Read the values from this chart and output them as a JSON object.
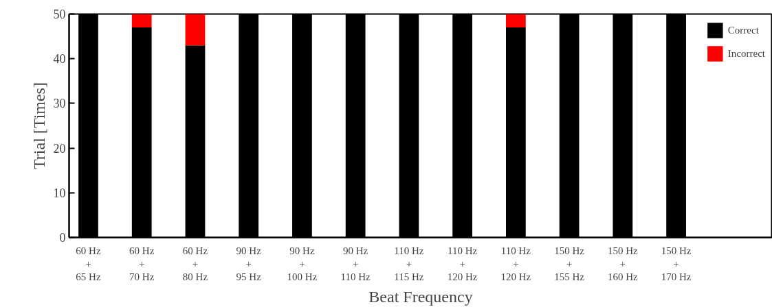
{
  "chart_data": {
    "type": "bar",
    "stacked": true,
    "categories": [
      "60 Hz\n+\n65 Hz",
      "60 Hz\n+\n70 Hz",
      "60 Hz\n+\n80 Hz",
      "90 Hz\n+\n95 Hz",
      "90 Hz\n+\n100 Hz",
      "90 Hz\n+\n110 Hz",
      "110 Hz\n+\n115 Hz",
      "110 Hz\n+\n120 Hz",
      "110 Hz\n+\n120 Hz",
      "150 Hz\n+\n155 Hz",
      "150 Hz\n+\n160 Hz",
      "150 Hz\n+\n170 Hz"
    ],
    "series": [
      {
        "name": "Correct",
        "color": "#000000",
        "values": [
          50,
          47,
          43,
          50,
          50,
          50,
          50,
          50,
          47,
          50,
          50,
          50
        ]
      },
      {
        "name": "Incorrect",
        "color": "#ff0000",
        "values": [
          0,
          3,
          7,
          0,
          0,
          0,
          0,
          0,
          3,
          0,
          0,
          0
        ]
      }
    ],
    "xlabel": "Beat Frequency",
    "ylabel": "Trial [Times]",
    "ylim": [
      0,
      50
    ],
    "yticks": [
      0,
      10,
      20,
      30,
      40,
      50
    ],
    "grid": false,
    "legend": "top right"
  }
}
